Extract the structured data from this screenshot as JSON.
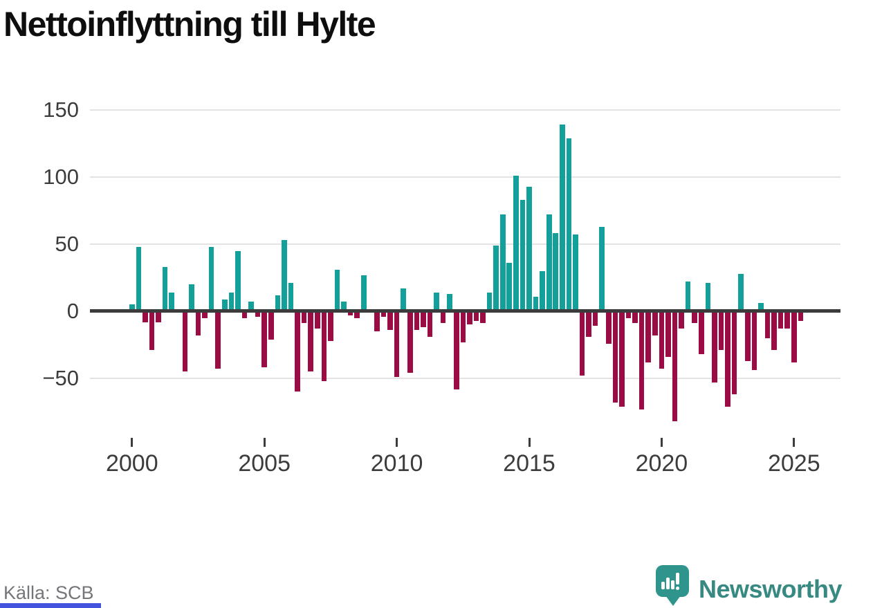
{
  "title": "Nettoinflyttning till Hylte",
  "footer": {
    "source": "Källa: SCB",
    "brand": "Newsworthy"
  },
  "chart_data": {
    "type": "bar",
    "frequency": "quarterly",
    "x_start": "2000 Q1",
    "x_end": "2025 Q2",
    "title": "Nettoinflyttning till Hylte",
    "xlabel": "",
    "ylabel": "",
    "ylim": [
      -93,
      160
    ],
    "grid": "horizontal",
    "legend": "none",
    "positive_color": "#14a09a",
    "negative_color": "#9c0c44",
    "values": [
      5,
      48,
      -8,
      -29,
      -8,
      33,
      14,
      0,
      -45,
      20,
      -18,
      -5,
      48,
      -43,
      9,
      14,
      45,
      -5,
      7,
      -4,
      -42,
      -21,
      12,
      53,
      21,
      -60,
      -9,
      -45,
      -13,
      -52,
      -22,
      31,
      7,
      -3,
      -5,
      27,
      0,
      -15,
      -4,
      -14,
      -49,
      17,
      -46,
      -14,
      -12,
      -19,
      14,
      -9,
      13,
      -58,
      -23,
      -10,
      -7,
      -9,
      14,
      49,
      72,
      36,
      101,
      83,
      93,
      11,
      30,
      72,
      58,
      139,
      129,
      57,
      -48,
      -19,
      -11,
      63,
      -24,
      -68,
      -71,
      -5,
      -9,
      -73,
      -38,
      -18,
      -43,
      -34,
      -82,
      -13,
      22,
      -9,
      -32,
      21,
      -53,
      -29,
      -71,
      -62,
      28,
      -37,
      -44,
      6,
      -20,
      -29,
      -13,
      -13,
      -38,
      -7
    ],
    "y_ticks": [
      {
        "value": 150,
        "label": "150"
      },
      {
        "value": 100,
        "label": "100"
      },
      {
        "value": 50,
        "label": "50"
      },
      {
        "value": 0,
        "label": "0"
      },
      {
        "value": -50,
        "label": "−50"
      }
    ],
    "x_ticks": [
      {
        "label": "2000",
        "quarter_index": 0
      },
      {
        "label": "2005",
        "quarter_index": 20
      },
      {
        "label": "2010",
        "quarter_index": 40
      },
      {
        "label": "2015",
        "quarter_index": 60
      },
      {
        "label": "2020",
        "quarter_index": 80
      },
      {
        "label": "2025",
        "quarter_index": 100
      }
    ]
  }
}
